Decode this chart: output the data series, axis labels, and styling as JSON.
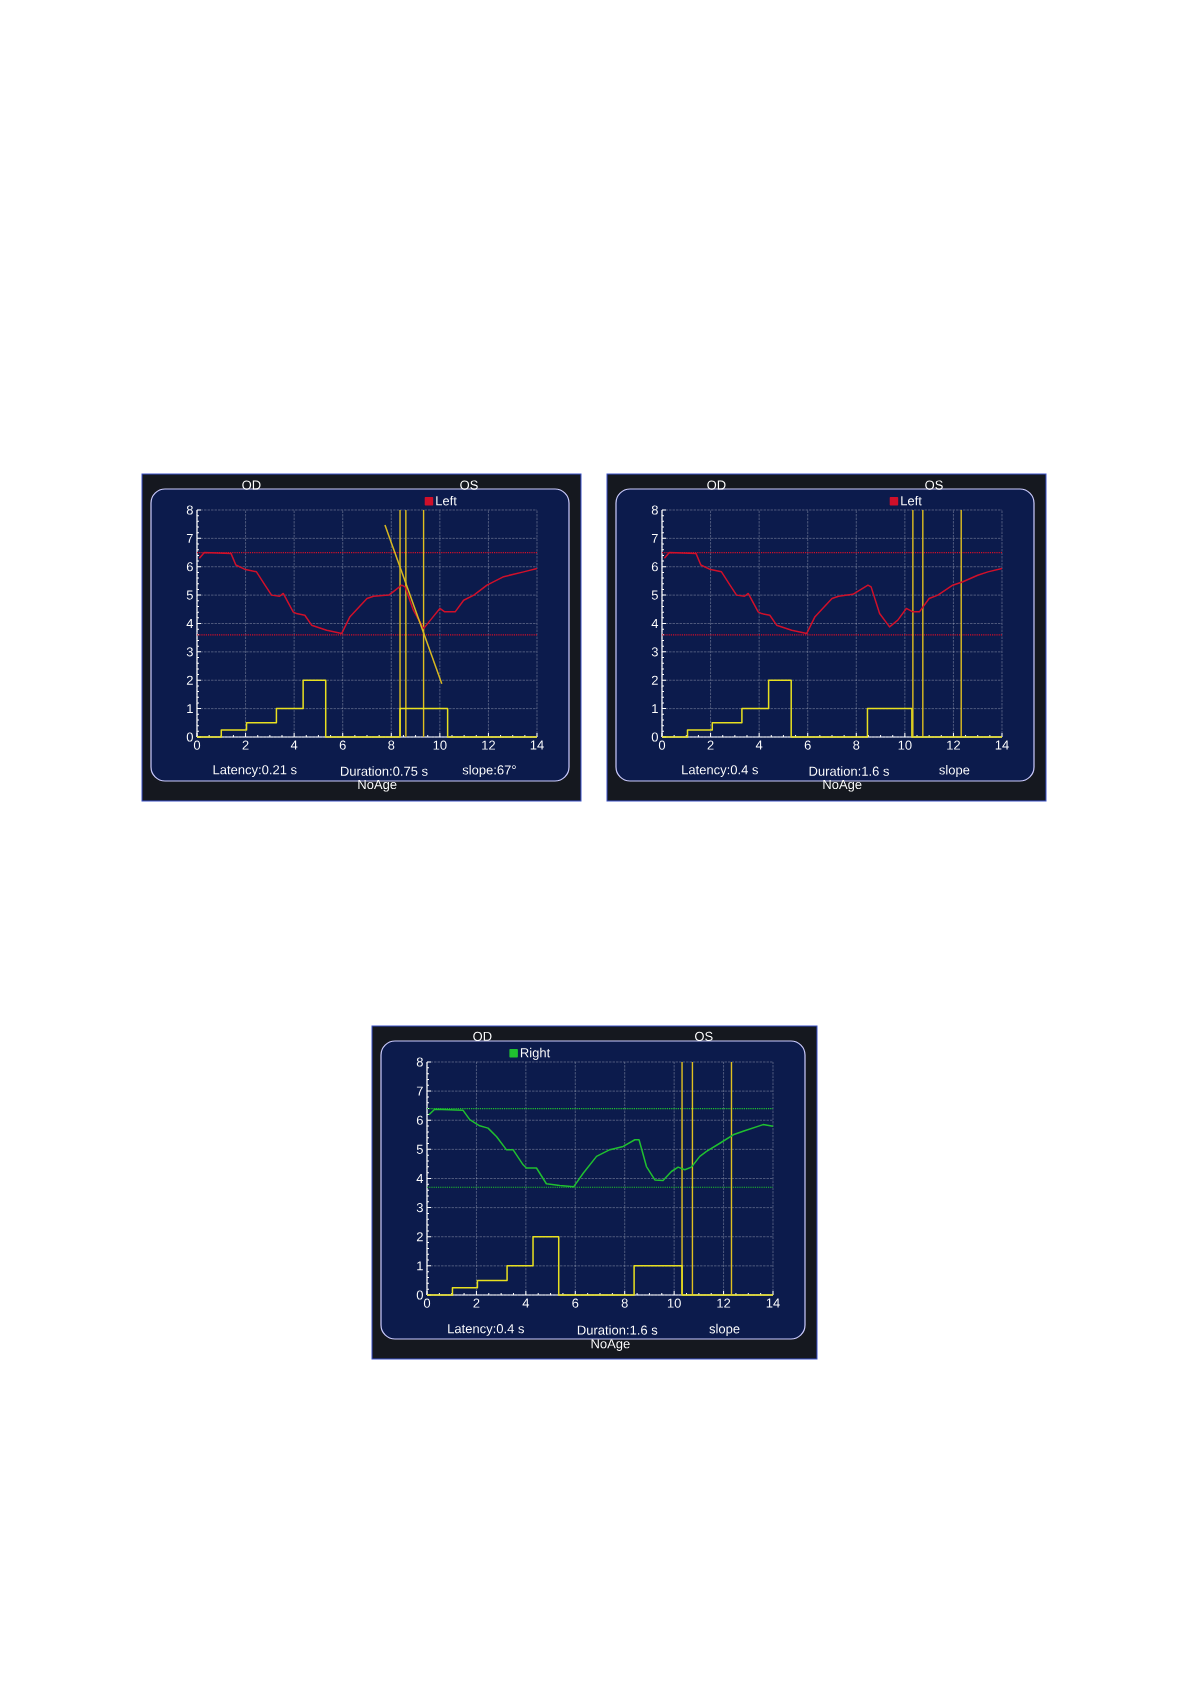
{
  "chart_data": [
    {
      "type": "line",
      "xlim": [
        0,
        14
      ],
      "ylim": [
        0,
        8
      ],
      "xticks": [
        0,
        2,
        4,
        6,
        8,
        10,
        12,
        14
      ],
      "yticks": [
        0,
        1,
        2,
        3,
        4,
        5,
        6,
        7,
        8
      ],
      "grid": true,
      "legend": "top right",
      "annotations": [
        "OD",
        "OS",
        "Latency:0.21 s",
        "Duration:0.75 s",
        "slope:67°",
        "NoAge"
      ],
      "series": [
        {
          "name": "Left",
          "type": "line",
          "color": "#d0102a",
          "x": [
            0.1,
            0.3,
            1.4,
            1.6,
            2.0,
            2.45,
            2.8,
            3.07,
            3.4,
            3.55,
            3.96,
            4.1,
            4.44,
            4.72,
            5.34,
            5.96,
            6.3,
            7.0,
            7.27,
            7.9,
            8.43,
            8.57,
            8.91,
            9.33,
            9.67,
            10.0,
            10.2,
            10.63,
            10.98,
            11.4,
            11.94,
            12.63,
            13.45,
            14.0
          ],
          "values": [
            6.3,
            6.5,
            6.47,
            6.06,
            5.9,
            5.82,
            5.35,
            5.0,
            4.96,
            5.06,
            4.41,
            4.35,
            4.29,
            3.94,
            3.76,
            3.65,
            4.24,
            4.88,
            4.96,
            5.0,
            5.35,
            5.29,
            4.47,
            3.82,
            4.18,
            4.53,
            4.41,
            4.41,
            4.82,
            5.0,
            5.35,
            5.65,
            5.82,
            5.94
          ]
        },
        {
          "type": "step",
          "color": "#e8e020",
          "x": [
            0,
            1.0,
            2.04,
            3.27,
            4.37,
            5.3,
            8.36,
            10.32,
            14
          ],
          "values": [
            0,
            0.25,
            0.5,
            1,
            2,
            0,
            1,
            0,
            0
          ]
        },
        {
          "type": "line",
          "color": "#d8b820",
          "x": [
            7.74,
            10.08
          ],
          "values": [
            7.47,
            1.88
          ]
        }
      ],
      "ref_lines": [
        {
          "axis": "y",
          "value": 6.5,
          "color": "#d0102a",
          "line_style": "dotted"
        },
        {
          "axis": "y",
          "value": 3.6,
          "color": "#d0102a",
          "line_style": "dotted"
        },
        {
          "axis": "x",
          "value": 8.36,
          "color": "#e0c020",
          "line_style": "solid"
        },
        {
          "axis": "x",
          "value": 8.6,
          "color": "#e0c020",
          "line_style": "solid"
        },
        {
          "axis": "x",
          "value": 9.33,
          "color": "#e0c020",
          "line_style": "solid"
        }
      ]
    },
    {
      "type": "line",
      "xlim": [
        0,
        14
      ],
      "ylim": [
        0,
        8
      ],
      "xticks": [
        0,
        2,
        4,
        6,
        8,
        10,
        12,
        14
      ],
      "yticks": [
        0,
        1,
        2,
        3,
        4,
        5,
        6,
        7,
        8
      ],
      "grid": true,
      "legend": "top right",
      "annotations": [
        "OD",
        "OS",
        "Latency:0.4 s",
        "Duration:1.6 s",
        "slope",
        "NoAge"
      ],
      "series": [
        {
          "name": "Left",
          "type": "line",
          "color": "#d0102a",
          "x": [
            0.1,
            0.3,
            1.4,
            1.6,
            2.0,
            2.45,
            2.8,
            3.07,
            3.4,
            3.55,
            3.96,
            4.1,
            4.44,
            4.72,
            5.34,
            5.96,
            6.3,
            7.0,
            7.27,
            7.86,
            8.48,
            8.61,
            8.96,
            9.37,
            9.71,
            10.06,
            10.33,
            10.6,
            11.0,
            11.36,
            11.97,
            12.39,
            13.0,
            13.42,
            14.0
          ],
          "values": [
            6.3,
            6.5,
            6.47,
            6.06,
            5.9,
            5.82,
            5.35,
            5.0,
            4.96,
            5.06,
            4.41,
            4.35,
            4.29,
            3.94,
            3.76,
            3.65,
            4.24,
            4.88,
            4.96,
            5.03,
            5.35,
            5.29,
            4.35,
            3.88,
            4.12,
            4.53,
            4.41,
            4.41,
            4.88,
            5.0,
            5.35,
            5.47,
            5.7,
            5.82,
            5.94
          ]
        },
        {
          "type": "step",
          "color": "#e8e020",
          "x": [
            0,
            1.05,
            2.07,
            3.29,
            4.39,
            5.32,
            8.46,
            10.29,
            14
          ],
          "values": [
            0,
            0.25,
            0.5,
            1,
            2,
            0,
            1,
            0,
            0
          ]
        }
      ],
      "ref_lines": [
        {
          "axis": "y",
          "value": 6.5,
          "color": "#d0102a",
          "line_style": "dotted"
        },
        {
          "axis": "y",
          "value": 3.6,
          "color": "#d0102a",
          "line_style": "dotted"
        },
        {
          "axis": "x",
          "value": 10.33,
          "color": "#e0c020",
          "line_style": "solid"
        },
        {
          "axis": "x",
          "value": 10.74,
          "color": "#e0c020",
          "line_style": "solid"
        },
        {
          "axis": "x",
          "value": 12.32,
          "color": "#e0c020",
          "line_style": "solid"
        }
      ]
    },
    {
      "type": "line",
      "xlim": [
        0,
        14
      ],
      "ylim": [
        0,
        8
      ],
      "xticks": [
        0,
        2,
        4,
        6,
        8,
        10,
        12,
        14
      ],
      "yticks": [
        0,
        1,
        2,
        3,
        4,
        5,
        6,
        7,
        8
      ],
      "grid": true,
      "legend": "top left",
      "annotations": [
        "OD",
        "OS",
        "Latency:0.4 s",
        "Duration:1.6 s",
        "slope",
        "NoAge"
      ],
      "series": [
        {
          "name": "Right",
          "type": "line",
          "color": "#20c030",
          "x": [
            0.08,
            0.31,
            1.46,
            1.73,
            2.13,
            2.47,
            2.81,
            3.21,
            3.48,
            3.89,
            4.02,
            4.43,
            4.83,
            5.37,
            5.94,
            6.32,
            6.86,
            7.4,
            7.94,
            8.41,
            8.58,
            8.88,
            9.22,
            9.55,
            9.89,
            10.16,
            10.43,
            10.7,
            11.04,
            11.31,
            11.85,
            12.39,
            12.79,
            13.6,
            14.0
          ],
          "values": [
            6.19,
            6.38,
            6.34,
            6.02,
            5.81,
            5.73,
            5.44,
            4.99,
            4.99,
            4.47,
            4.36,
            4.36,
            3.82,
            3.76,
            3.72,
            4.18,
            4.76,
            4.99,
            5.1,
            5.33,
            5.33,
            4.41,
            3.95,
            3.93,
            4.24,
            4.39,
            4.3,
            4.39,
            4.76,
            4.93,
            5.21,
            5.5,
            5.62,
            5.85,
            5.79
          ]
        },
        {
          "type": "step",
          "color": "#e8e020",
          "x": [
            0,
            1.03,
            2.04,
            3.24,
            4.29,
            5.33,
            8.38,
            10.32,
            14
          ],
          "values": [
            0,
            0.25,
            0.5,
            1,
            2,
            0,
            1,
            0,
            0
          ]
        }
      ],
      "ref_lines": [
        {
          "axis": "y",
          "value": 6.4,
          "color": "#20c030",
          "line_style": "dotted"
        },
        {
          "axis": "y",
          "value": 3.7,
          "color": "#20c030",
          "line_style": "dotted"
        },
        {
          "axis": "x",
          "value": 10.32,
          "color": "#e0c020",
          "line_style": "solid"
        },
        {
          "axis": "x",
          "value": 10.74,
          "color": "#e0c020",
          "line_style": "solid"
        },
        {
          "axis": "x",
          "value": 12.32,
          "color": "#e0c020",
          "line_style": "solid"
        }
      ]
    }
  ]
}
